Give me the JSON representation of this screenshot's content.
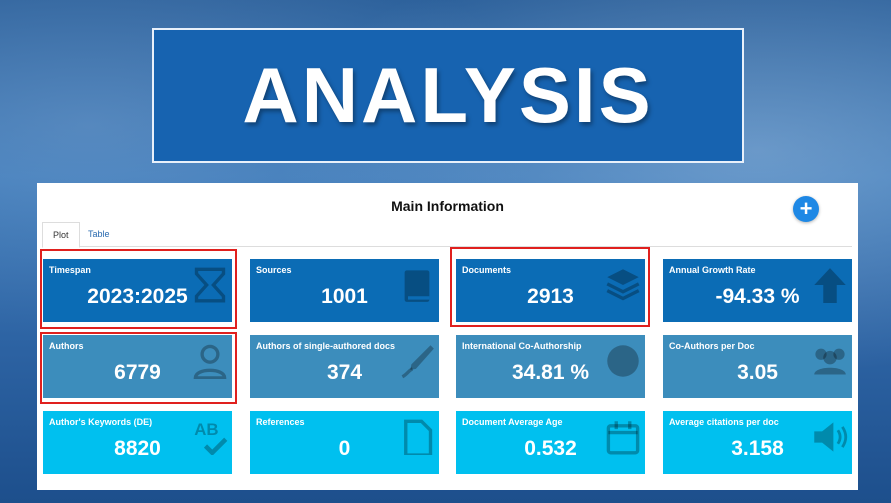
{
  "header": {
    "title": "ANALYSIS"
  },
  "panel": {
    "title": "Main Information",
    "tabs": [
      "Plot",
      "Table"
    ],
    "cards": [
      {
        "label": "Timespan",
        "value": "2023:2025"
      },
      {
        "label": "Sources",
        "value": "1001"
      },
      {
        "label": "Documents",
        "value": "2913"
      },
      {
        "label": "Annual Growth Rate",
        "value": "-94.33 %"
      },
      {
        "label": "Authors",
        "value": "6779"
      },
      {
        "label": "Authors of single-authored docs",
        "value": "374"
      },
      {
        "label": "International Co-Authorship",
        "value": "34.81 %"
      },
      {
        "label": "Co-Authors per Doc",
        "value": "3.05"
      },
      {
        "label": "Author's Keywords (DE)",
        "value": "8820"
      },
      {
        "label": "References",
        "value": "0"
      },
      {
        "label": "Document Average Age",
        "value": "0.532"
      },
      {
        "label": "Average citations per doc",
        "value": "3.158"
      }
    ]
  }
}
